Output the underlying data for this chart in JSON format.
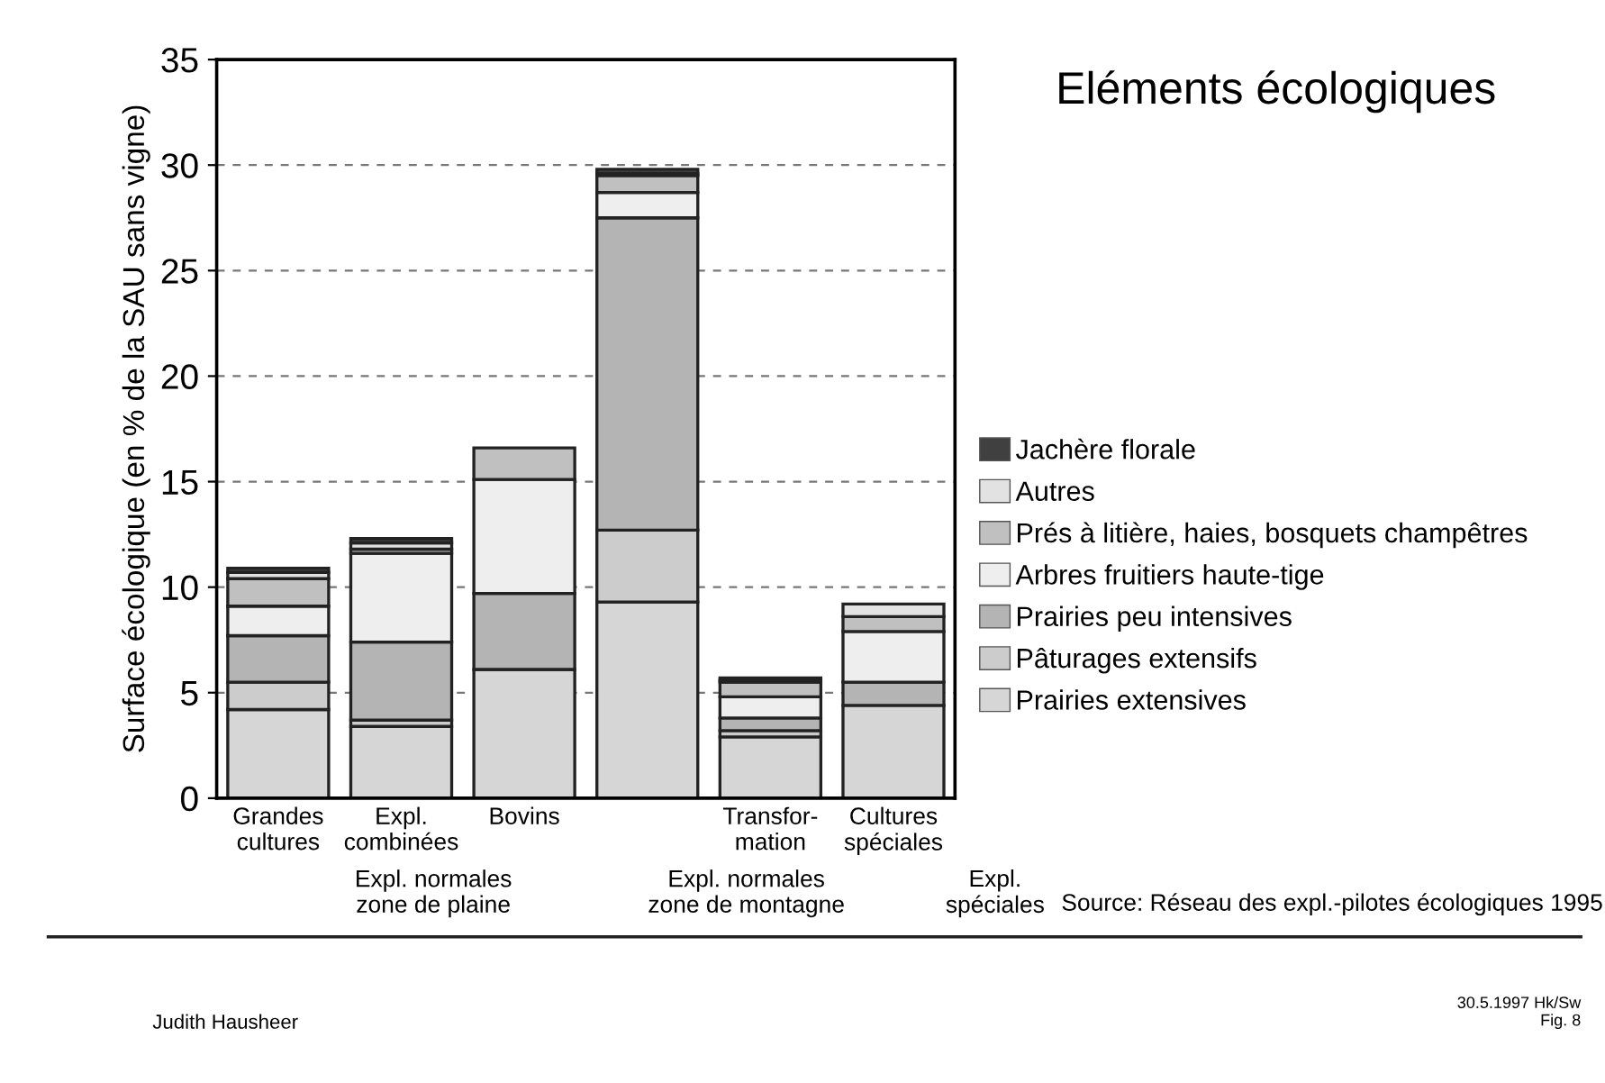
{
  "chart_data": {
    "type": "bar",
    "stacked": true,
    "title": "Eléments écologiques",
    "ylabel": "Surface écologique (en % de la SAU sans vigne)",
    "categories": [
      "Grandes\ncultures",
      "Expl.\ncombinées",
      "Bovins",
      null,
      "Transfor-\nmation",
      "Cultures\nspéciales"
    ],
    "series": [
      {
        "name": "Prairies extensives",
        "color": "#d6d6d6",
        "values": [
          4.2,
          3.4,
          6.1,
          9.3,
          2.9,
          4.4
        ]
      },
      {
        "name": "Pâturages extensifs",
        "color": "#cccccc",
        "values": [
          1.3,
          0.3,
          0,
          3.4,
          0.3,
          0
        ]
      },
      {
        "name": "Prairies peu intensives",
        "color": "#b4b4b4",
        "values": [
          2.2,
          3.7,
          3.6,
          14.8,
          0.6,
          1.1
        ]
      },
      {
        "name": "Arbres fruitiers haute-tige",
        "color": "#eeeeee",
        "values": [
          1.4,
          4.2,
          5.4,
          1.2,
          1.0,
          2.4
        ]
      },
      {
        "name": "Prés à litière, haies, bosquets champêtres",
        "color": "#c0c0c0",
        "values": [
          1.3,
          0.2,
          1.5,
          0.8,
          0.7,
          0.7
        ]
      },
      {
        "name": "Autres",
        "color": "#e2e2e2",
        "values": [
          0.3,
          0.3,
          0,
          0.1,
          0.1,
          0.6
        ]
      },
      {
        "name": "Jachère florale",
        "color": "#404040",
        "values": [
          0.2,
          0.2,
          0,
          0.2,
          0.1,
          0
        ]
      }
    ],
    "ylim": [
      0,
      35
    ],
    "yticks": [
      0,
      5,
      10,
      15,
      20,
      25,
      30,
      35
    ],
    "grid": "y",
    "legend": "right",
    "annotations": [
      "Expl. normales\nzone de plaine",
      "Expl. normales\nzone de montagne",
      "Expl.\nspéciales",
      "Source: Réseau des expl.-pilotes écologiques 1995",
      "Judith Hausheer",
      "30.5.1997 Hk/Sw\nFig. 8"
    ]
  }
}
